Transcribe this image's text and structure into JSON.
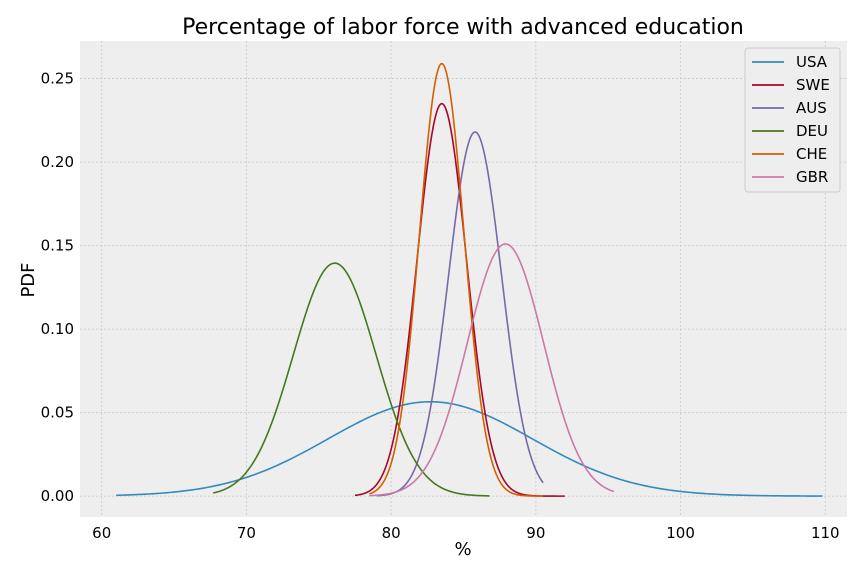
{
  "chart_data": {
    "type": "line",
    "title": "Percentage of labor force with advanced education",
    "xlabel": "%",
    "ylabel": "PDF",
    "xlim": [
      58.5,
      111.5
    ],
    "ylim": [
      -0.0125,
      0.2725
    ],
    "xticks": [
      60,
      70,
      80,
      90,
      100,
      110
    ],
    "xtick_labels": [
      "60",
      "70",
      "80",
      "90",
      "100",
      "110"
    ],
    "yticks": [
      0.0,
      0.05,
      0.1,
      0.15,
      0.2,
      0.25
    ],
    "ytick_labels": [
      "0.00",
      "0.05",
      "0.10",
      "0.15",
      "0.20",
      "0.25"
    ],
    "grid": true,
    "legend_position": "top-right",
    "background": "#eeeeee",
    "series": [
      {
        "name": "USA",
        "color": "#348abd",
        "mean": 82.7,
        "peak": 0.0565,
        "x_range": [
          61.0,
          109.8
        ]
      },
      {
        "name": "SWE",
        "color": "#a60628",
        "mean": 83.5,
        "peak": 0.235,
        "x_range": [
          77.5,
          92.0
        ]
      },
      {
        "name": "AUS",
        "color": "#7a68a6",
        "mean": 85.8,
        "peak": 0.218,
        "x_range": [
          79.0,
          90.5
        ]
      },
      {
        "name": "DEU",
        "color": "#467821",
        "mean": 76.1,
        "peak": 0.1395,
        "x_range": [
          67.7,
          86.8
        ]
      },
      {
        "name": "CHE",
        "color": "#d55e00",
        "mean": 83.5,
        "peak": 0.259,
        "x_range": [
          78.5,
          90.5
        ]
      },
      {
        "name": "GBR",
        "color": "#cc79a7",
        "mean": 87.9,
        "peak": 0.151,
        "x_range": [
          78.5,
          95.4
        ]
      }
    ]
  }
}
